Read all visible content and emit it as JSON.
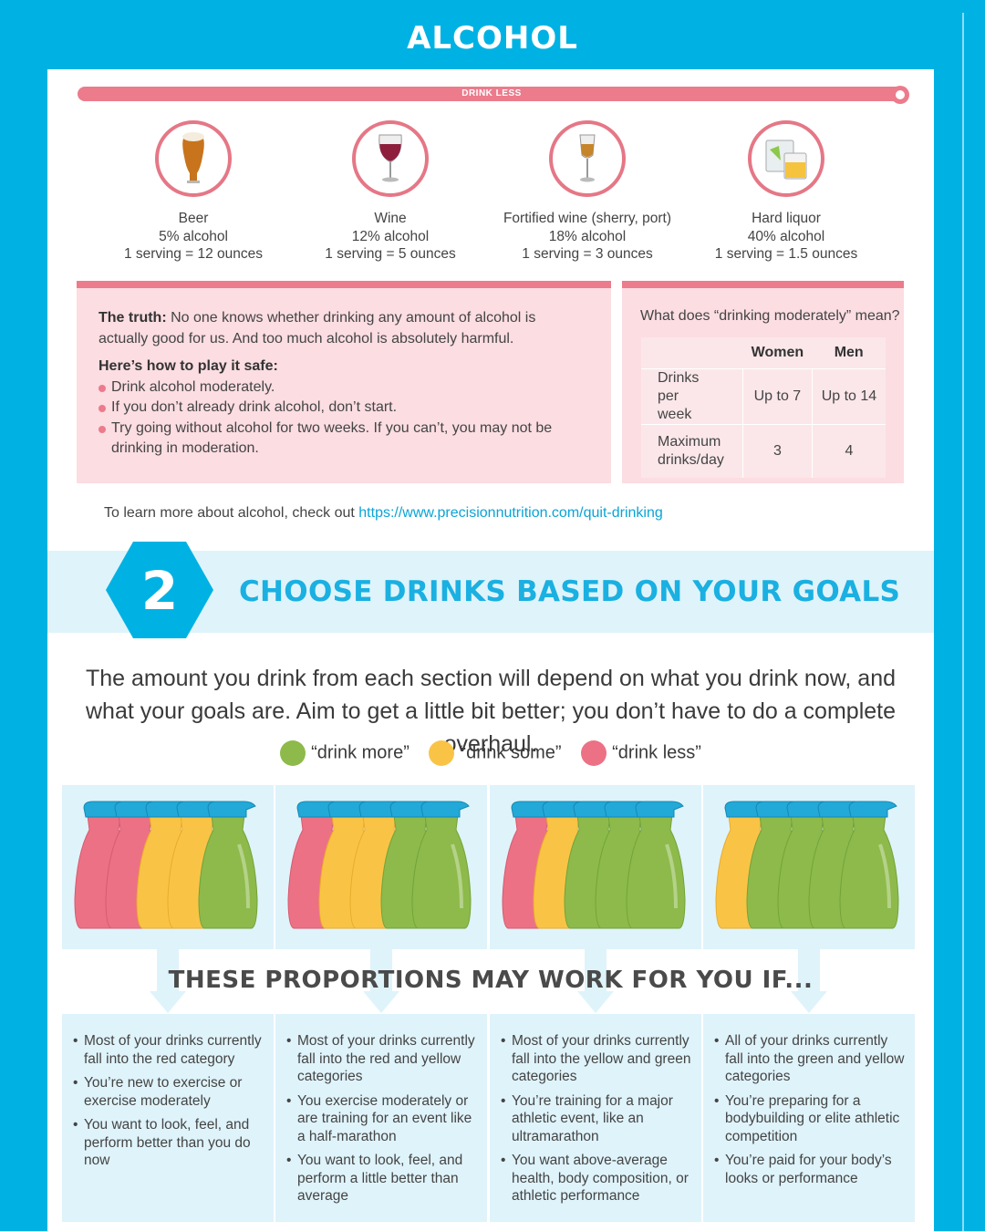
{
  "header": {
    "title": "ALCOHOL"
  },
  "drink_less_bar": {
    "label": "DRINK LESS"
  },
  "drinks": [
    {
      "name": "Beer",
      "percent": "5% alcohol",
      "serving": "1 serving = 12 ounces",
      "icon": "beer-glass-icon"
    },
    {
      "name": "Wine",
      "percent": "12% alcohol",
      "serving": "1 serving = 5 ounces",
      "icon": "wine-glass-icon"
    },
    {
      "name": "Fortified wine (sherry, port)",
      "percent": "18% alcohol",
      "serving": "1 serving = 3 ounces",
      "icon": "sherry-glass-icon"
    },
    {
      "name": "Hard liquor",
      "percent": "40% alcohol",
      "serving": "1 serving = 1.5 ounces",
      "icon": "liquor-glass-icon"
    }
  ],
  "truth": {
    "label": "The truth:",
    "text": " No one knows whether drinking any amount of alcohol is actually good for us. And too much alcohol is absolutely harmful.",
    "heading": "Here’s how to play it safe:",
    "tips": [
      "Drink alcohol moderately.",
      "If you don’t already drink alcohol, don’t start.",
      "Try going without alcohol for two weeks. If you can’t, you may not be drinking in moderation."
    ]
  },
  "moderation": {
    "question": "What does “drinking moderately” mean?",
    "col_women": "Women",
    "col_men": "Men",
    "row1_label": "Drinks per week",
    "row1_women": "Up to 7",
    "row1_men": "Up to 14",
    "row2_label": "Maximum drinks/day",
    "row2_women": "3",
    "row2_men": "4"
  },
  "learn_more": {
    "text": "To learn more about alcohol, check out ",
    "link": "https://www.precisionnutrition.com/quit-drinking"
  },
  "section2": {
    "number": "2",
    "title": "CHOOSE DRINKS BASED ON YOUR GOALS",
    "intro": "The amount you drink from each section will depend on what you drink now, and what your goals are. Aim to get a little bit better; you don’t have to do a complete overhaul.",
    "legend": [
      {
        "label": "“drink more”",
        "color": "#8dba4a"
      },
      {
        "label": "“drink some”",
        "color": "#f9c446"
      },
      {
        "label": "“drink less”",
        "color": "#ec7185"
      }
    ],
    "proportions_title": "THESE PROPORTIONS MAY WORK FOR YOU IF...",
    "columns": [
      {
        "jugs": [
          "red",
          "red",
          "yellow",
          "yellow",
          "green"
        ],
        "points": [
          "Most of your drinks currently fall into the red category",
          "You’re new to exercise or exercise moderately",
          "You want to look, feel, and perform better than you do now"
        ]
      },
      {
        "jugs": [
          "red",
          "yellow",
          "yellow",
          "green",
          "green"
        ],
        "points": [
          "Most of your drinks currently fall into the red and yellow categories",
          "You exercise moderately or are training for an event like a half-marathon",
          "You want to look, feel, and perform a little better than average"
        ]
      },
      {
        "jugs": [
          "red",
          "yellow",
          "green",
          "green",
          "green"
        ],
        "points": [
          "Most of your drinks currently fall into the yellow and green categories",
          "You’re training for a major athletic event, like an ultramarathon",
          "You want above-average health, body composition, or athletic performance"
        ]
      },
      {
        "jugs": [
          "yellow",
          "green",
          "green",
          "green",
          "green"
        ],
        "points": [
          "All of your drinks currently fall into the green and yellow categories",
          "You’re preparing for a bodybuilding or elite athletic competition",
          "You’re paid for your body’s looks or performance"
        ]
      }
    ]
  }
}
